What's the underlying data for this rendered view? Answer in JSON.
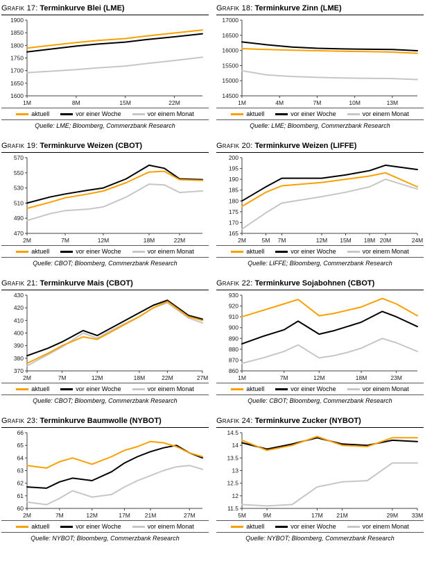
{
  "legend": [
    "aktuell",
    "vor einer Woche",
    "vor einem Monat"
  ],
  "colors": {
    "aktuell": "#F9A000",
    "woche": "#000000",
    "monat": "#C6C6C6",
    "axis": "#404040"
  },
  "chart_data": [
    {
      "title_prefix": "Grafik 17:",
      "title": "Terminkurve Blei (LME)",
      "source": "Quelle: LME; Bloomberg, Commerzbank Research",
      "type": "line",
      "x_months": [
        1,
        4,
        8,
        11,
        15,
        18,
        22,
        26
      ],
      "x_ticks": [
        {
          "pos": 1,
          "label": "1M"
        },
        {
          "pos": 8,
          "label": "8M"
        },
        {
          "pos": 15,
          "label": "15M"
        },
        {
          "pos": 22,
          "label": "22M"
        }
      ],
      "ylim": [
        1600,
        1900
      ],
      "y_ticks": [
        1600,
        1650,
        1700,
        1750,
        1800,
        1850,
        1900
      ],
      "series": [
        {
          "name": "aktuell",
          "color": "#F9A000",
          "values": [
            1789,
            1799,
            1811,
            1819,
            1827,
            1837,
            1849,
            1861
          ]
        },
        {
          "name": "vor einer Woche",
          "color": "#000000",
          "values": [
            1774,
            1784,
            1797,
            1805,
            1813,
            1823,
            1834,
            1846
          ]
        },
        {
          "name": "vor einem Monat",
          "color": "#C6C6C6",
          "values": [
            1692,
            1697,
            1704,
            1711,
            1718,
            1728,
            1740,
            1753
          ]
        }
      ]
    },
    {
      "title_prefix": "Grafik 18:",
      "title": "Terminkurve Zinn (LME)",
      "source": "Quelle: LME; Bloomberg, Commerzbank Research",
      "type": "line",
      "x_months": [
        1,
        3,
        5,
        7,
        9,
        11,
        13,
        15
      ],
      "x_ticks": [
        {
          "pos": 1,
          "label": "1M"
        },
        {
          "pos": 4,
          "label": "4M"
        },
        {
          "pos": 7,
          "label": "7M"
        },
        {
          "pos": 10,
          "label": "10M"
        },
        {
          "pos": 13,
          "label": "13M"
        }
      ],
      "ylim": [
        14500,
        17000
      ],
      "y_ticks": [
        14500,
        15000,
        15500,
        16000,
        16500,
        17000
      ],
      "series": [
        {
          "name": "aktuell",
          "color": "#F9A000",
          "values": [
            16060,
            16030,
            16010,
            15990,
            15975,
            15960,
            15945,
            15905
          ]
        },
        {
          "name": "vor einer Woche",
          "color": "#000000",
          "values": [
            16280,
            16185,
            16110,
            16070,
            16050,
            16040,
            16030,
            15990
          ]
        },
        {
          "name": "vor einem Monat",
          "color": "#C6C6C6",
          "values": [
            15330,
            15190,
            15140,
            15110,
            15090,
            15080,
            15070,
            15040
          ]
        }
      ]
    },
    {
      "title_prefix": "Grafik 19:",
      "title": "Terminkurve Weizen (CBOT)",
      "source": "Quelle: CBOT; Bloomberg, Commerzbank Research",
      "type": "line",
      "x_months": [
        2,
        5,
        7,
        10,
        12,
        15,
        18,
        20,
        22,
        25
      ],
      "x_ticks": [
        {
          "pos": 2,
          "label": "2M"
        },
        {
          "pos": 7,
          "label": "7M"
        },
        {
          "pos": 12,
          "label": "12M"
        },
        {
          "pos": 18,
          "label": "18M"
        },
        {
          "pos": 22,
          "label": "22M"
        }
      ],
      "ylim": [
        470,
        570
      ],
      "y_ticks": [
        470,
        490,
        510,
        530,
        550,
        570
      ],
      "series": [
        {
          "name": "aktuell",
          "color": "#F9A000",
          "values": [
            503,
            511,
            517,
            522,
            526,
            537,
            551,
            552,
            541,
            540
          ]
        },
        {
          "name": "vor einer Woche",
          "color": "#000000",
          "values": [
            510,
            518,
            522,
            527,
            530,
            542,
            560,
            556,
            542,
            541
          ]
        },
        {
          "name": "vor einem Monat",
          "color": "#C6C6C6",
          "values": [
            487,
            496,
            500,
            502,
            505,
            518,
            535,
            534,
            524,
            526
          ]
        }
      ]
    },
    {
      "title_prefix": "Grafik 20:",
      "title": "Terminkurve Weizen (LIFFE)",
      "source": "Quelle: LIFFE; Bloomberg, Commerzbank Research",
      "type": "line",
      "x_months": [
        2,
        5,
        7,
        12,
        15,
        18,
        20,
        24
      ],
      "x_ticks": [
        {
          "pos": 2,
          "label": "2M"
        },
        {
          "pos": 5,
          "label": "5M"
        },
        {
          "pos": 7,
          "label": "7M"
        },
        {
          "pos": 12,
          "label": "12M"
        },
        {
          "pos": 15,
          "label": "15M"
        },
        {
          "pos": 18,
          "label": "18M"
        },
        {
          "pos": 20,
          "label": "20M"
        },
        {
          "pos": 24,
          "label": "24M"
        }
      ],
      "ylim": [
        165,
        200
      ],
      "y_ticks": [
        165,
        170,
        175,
        180,
        185,
        190,
        195,
        200
      ],
      "series": [
        {
          "name": "aktuell",
          "color": "#F9A000",
          "values": [
            177.5,
            184,
            187,
            188.5,
            190,
            191.5,
            193,
            186.5
          ]
        },
        {
          "name": "vor einer Woche",
          "color": "#000000",
          "values": [
            180,
            186.5,
            190.5,
            190.5,
            192,
            194,
            196.5,
            194.5
          ]
        },
        {
          "name": "vor einem Monat",
          "color": "#C6C6C6",
          "values": [
            167,
            174.5,
            179,
            182,
            184,
            186.5,
            190,
            185.5
          ]
        }
      ]
    },
    {
      "title_prefix": "Grafik 21:",
      "title": "Terminkurve Mais (CBOT)",
      "source": "Quelle: CBOT; Bloomberg, Commerzbank Research",
      "type": "line",
      "x_months": [
        2,
        5,
        7,
        10,
        12,
        15,
        18,
        20,
        22,
        25,
        27
      ],
      "x_ticks": [
        {
          "pos": 2,
          "label": "2M"
        },
        {
          "pos": 7,
          "label": "7M"
        },
        {
          "pos": 12,
          "label": "12M"
        },
        {
          "pos": 18,
          "label": "18M"
        },
        {
          "pos": 22,
          "label": "22M"
        },
        {
          "pos": 27,
          "label": "27M"
        }
      ],
      "ylim": [
        370,
        430
      ],
      "y_ticks": [
        370,
        380,
        390,
        400,
        410,
        420,
        430
      ],
      "series": [
        {
          "name": "aktuell",
          "color": "#F9A000",
          "values": [
            376,
            384,
            390,
            397,
            395,
            404,
            413,
            420,
            425,
            413,
            410
          ]
        },
        {
          "name": "vor einer Woche",
          "color": "#000000",
          "values": [
            382,
            388,
            393,
            402,
            398,
            407,
            416,
            422,
            426,
            414,
            411
          ]
        },
        {
          "name": "vor einem Monat",
          "color": "#C6C6C6",
          "values": [
            374,
            383,
            389,
            400,
            396,
            405,
            413,
            420,
            424,
            412,
            408
          ]
        }
      ]
    },
    {
      "title_prefix": "Grafik 22:",
      "title": "Terminkurve Sojabohnen (CBOT)",
      "source": "Quelle: CBOT; Bloomberg, Commerzbank Research",
      "type": "line",
      "x_months": [
        1,
        4,
        7,
        9,
        12,
        14,
        16,
        18,
        21,
        23,
        26
      ],
      "x_ticks": [
        {
          "pos": 1,
          "label": "1M"
        },
        {
          "pos": 7,
          "label": "7M"
        },
        {
          "pos": 12,
          "label": "12M"
        },
        {
          "pos": 18,
          "label": "18M"
        },
        {
          "pos": 23,
          "label": "23M"
        }
      ],
      "ylim": [
        860,
        930
      ],
      "y_ticks": [
        860,
        870,
        880,
        890,
        900,
        910,
        920,
        930
      ],
      "series": [
        {
          "name": "aktuell",
          "color": "#F9A000",
          "values": [
            910,
            916,
            922,
            926,
            911,
            913,
            916,
            919,
            927,
            922,
            911
          ]
        },
        {
          "name": "vor einer Woche",
          "color": "#000000",
          "values": [
            885,
            892,
            898,
            906,
            894,
            897,
            901,
            905,
            915,
            910,
            901
          ]
        },
        {
          "name": "vor einem Monat",
          "color": "#C6C6C6",
          "values": [
            867,
            872,
            878,
            884,
            872,
            874,
            877,
            881,
            890,
            886,
            878
          ]
        }
      ]
    },
    {
      "title_prefix": "Grafik 23:",
      "title": "Terminkurve Baumwolle (NYBOT)",
      "source": "Quelle: NYBOT; Bloomberg, Commerzbank Research",
      "type": "line",
      "x_months": [
        2,
        5,
        7,
        9,
        12,
        15,
        17,
        19,
        21,
        23,
        25,
        27,
        29
      ],
      "x_ticks": [
        {
          "pos": 2,
          "label": "2M"
        },
        {
          "pos": 7,
          "label": "7M"
        },
        {
          "pos": 12,
          "label": "12M"
        },
        {
          "pos": 17,
          "label": "17M"
        },
        {
          "pos": 21,
          "label": "21M"
        },
        {
          "pos": 27,
          "label": "27M"
        }
      ],
      "ylim": [
        60,
        66
      ],
      "y_ticks": [
        60,
        61,
        62,
        63,
        64,
        65,
        66
      ],
      "series": [
        {
          "name": "aktuell",
          "color": "#F9A000",
          "values": [
            63.4,
            63.2,
            63.7,
            64.0,
            63.5,
            64.1,
            64.6,
            64.9,
            65.3,
            65.2,
            64.9,
            64.4,
            64.1
          ]
        },
        {
          "name": "vor einer Woche",
          "color": "#000000",
          "values": [
            61.7,
            61.6,
            62.1,
            62.4,
            62.2,
            62.9,
            63.6,
            64.1,
            64.5,
            64.8,
            65.0,
            64.4,
            64.0
          ]
        },
        {
          "name": "vor einem Monat",
          "color": "#C6C6C6",
          "values": [
            60.5,
            60.3,
            60.8,
            61.4,
            60.9,
            61.1,
            61.7,
            62.2,
            62.6,
            63.0,
            63.3,
            63.4,
            63.1
          ]
        }
      ]
    },
    {
      "title_prefix": "Grafik 24:",
      "title": "Terminkurve Zucker (NYBOT)",
      "source": "Quelle: NYBOT; Bloomberg, Commerzbank Research",
      "type": "line",
      "x_months": [
        5,
        9,
        13,
        17,
        21,
        25,
        29,
        33
      ],
      "x_ticks": [
        {
          "pos": 5,
          "label": "5M"
        },
        {
          "pos": 9,
          "label": "9M"
        },
        {
          "pos": 17,
          "label": "17M"
        },
        {
          "pos": 21,
          "label": "21M"
        },
        {
          "pos": 29,
          "label": "29M"
        },
        {
          "pos": 33,
          "label": "33M"
        }
      ],
      "ylim": [
        11.5,
        14.5
      ],
      "y_ticks": [
        11.5,
        12,
        12.5,
        13,
        13.5,
        14,
        14.5
      ],
      "series": [
        {
          "name": "aktuell",
          "color": "#F9A000",
          "values": [
            14.2,
            13.8,
            14.0,
            14.35,
            14.0,
            13.95,
            14.3,
            14.3
          ]
        },
        {
          "name": "vor einer Woche",
          "color": "#000000",
          "values": [
            14.1,
            13.85,
            14.05,
            14.3,
            14.05,
            14.0,
            14.2,
            14.15
          ]
        },
        {
          "name": "vor einem Monat",
          "color": "#C6C6C6",
          "values": [
            11.65,
            11.6,
            11.65,
            12.35,
            12.55,
            12.6,
            13.3,
            13.3
          ]
        }
      ]
    }
  ]
}
